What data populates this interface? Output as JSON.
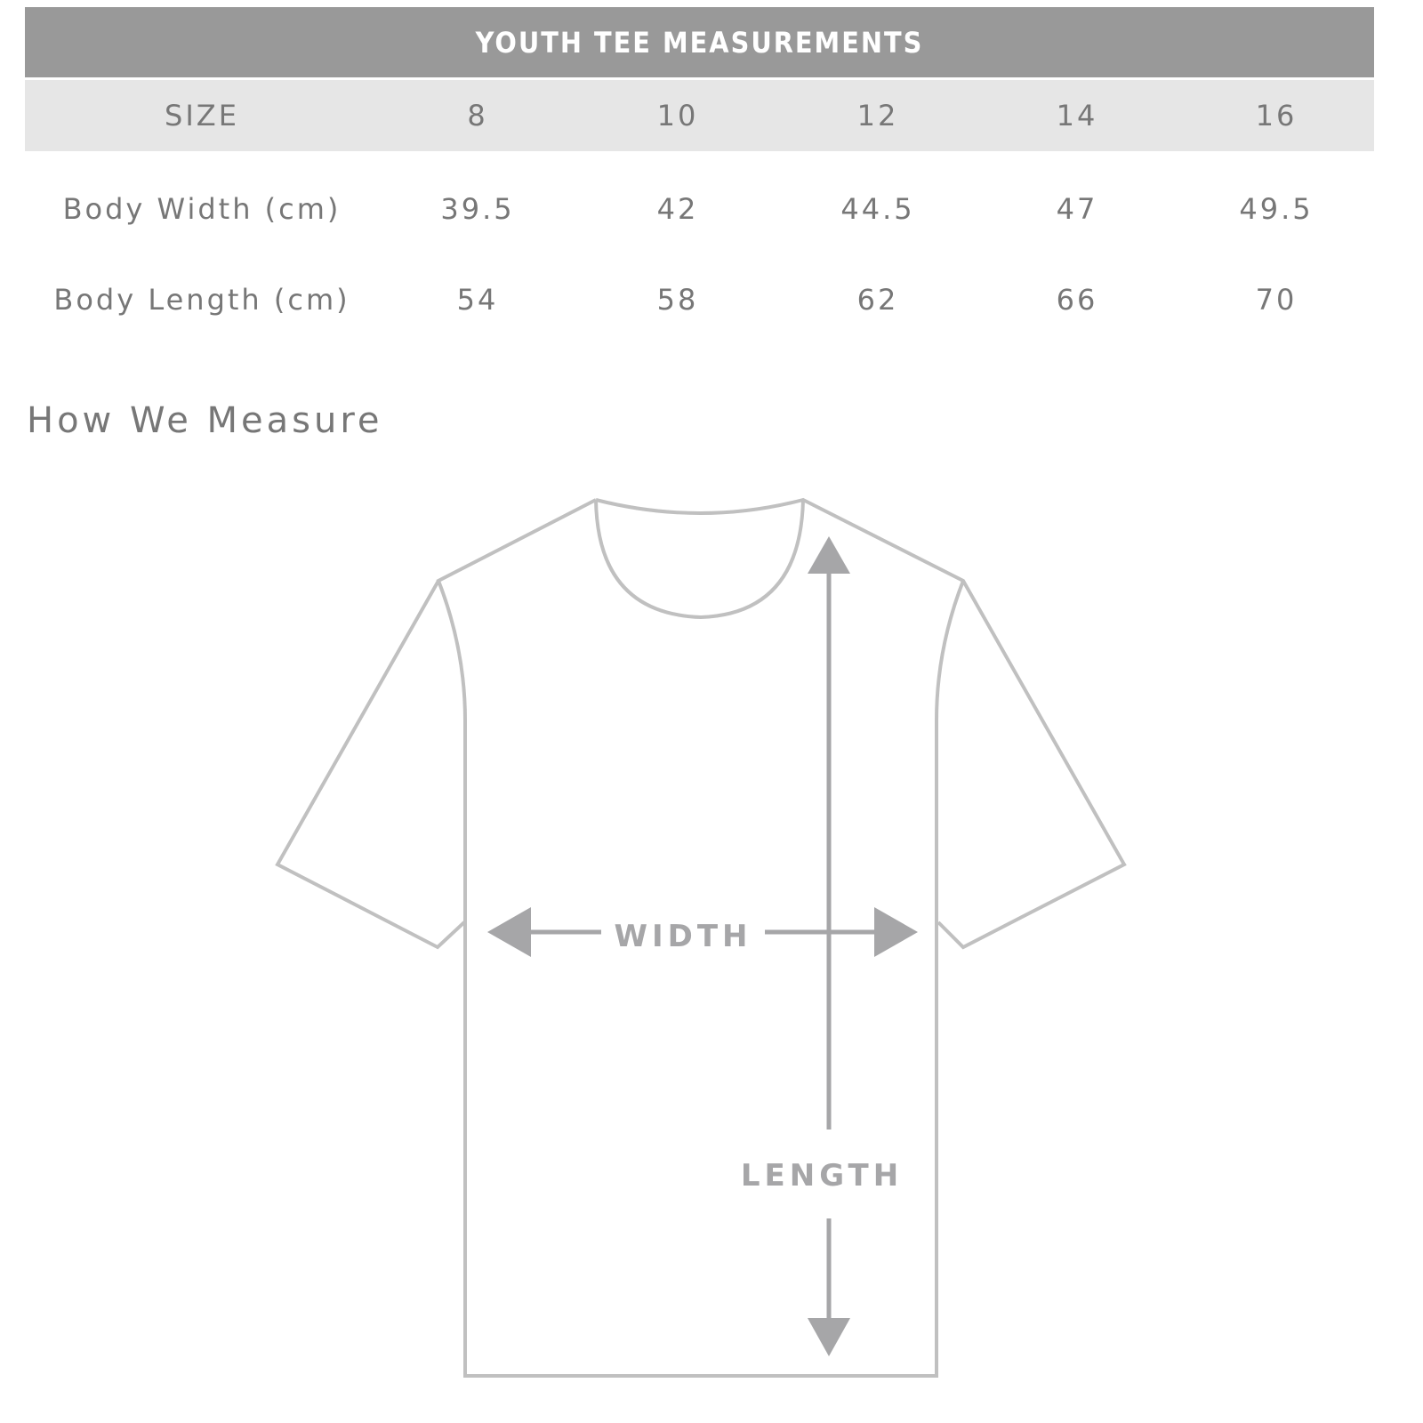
{
  "title": "YOUTH TEE MEASUREMENTS",
  "table": {
    "header": [
      "SIZE",
      "8",
      "10",
      "12",
      "14",
      "16"
    ],
    "rows": [
      {
        "label": "Body Width (cm)",
        "values": [
          "39.5",
          "42",
          "44.5",
          "47",
          "49.5"
        ]
      },
      {
        "label": "Body Length (cm)",
        "values": [
          "54",
          "58",
          "62",
          "66",
          "70"
        ]
      }
    ]
  },
  "how_we_measure": {
    "title": "How We Measure",
    "width_label": "WIDTH",
    "length_label": "LENGTH"
  },
  "colors": {
    "title_bar": "#999999",
    "size_row": "#e6e6e6",
    "outline": "#c0c0c0",
    "arrow": "#a6a6a8",
    "text": "#777777"
  }
}
